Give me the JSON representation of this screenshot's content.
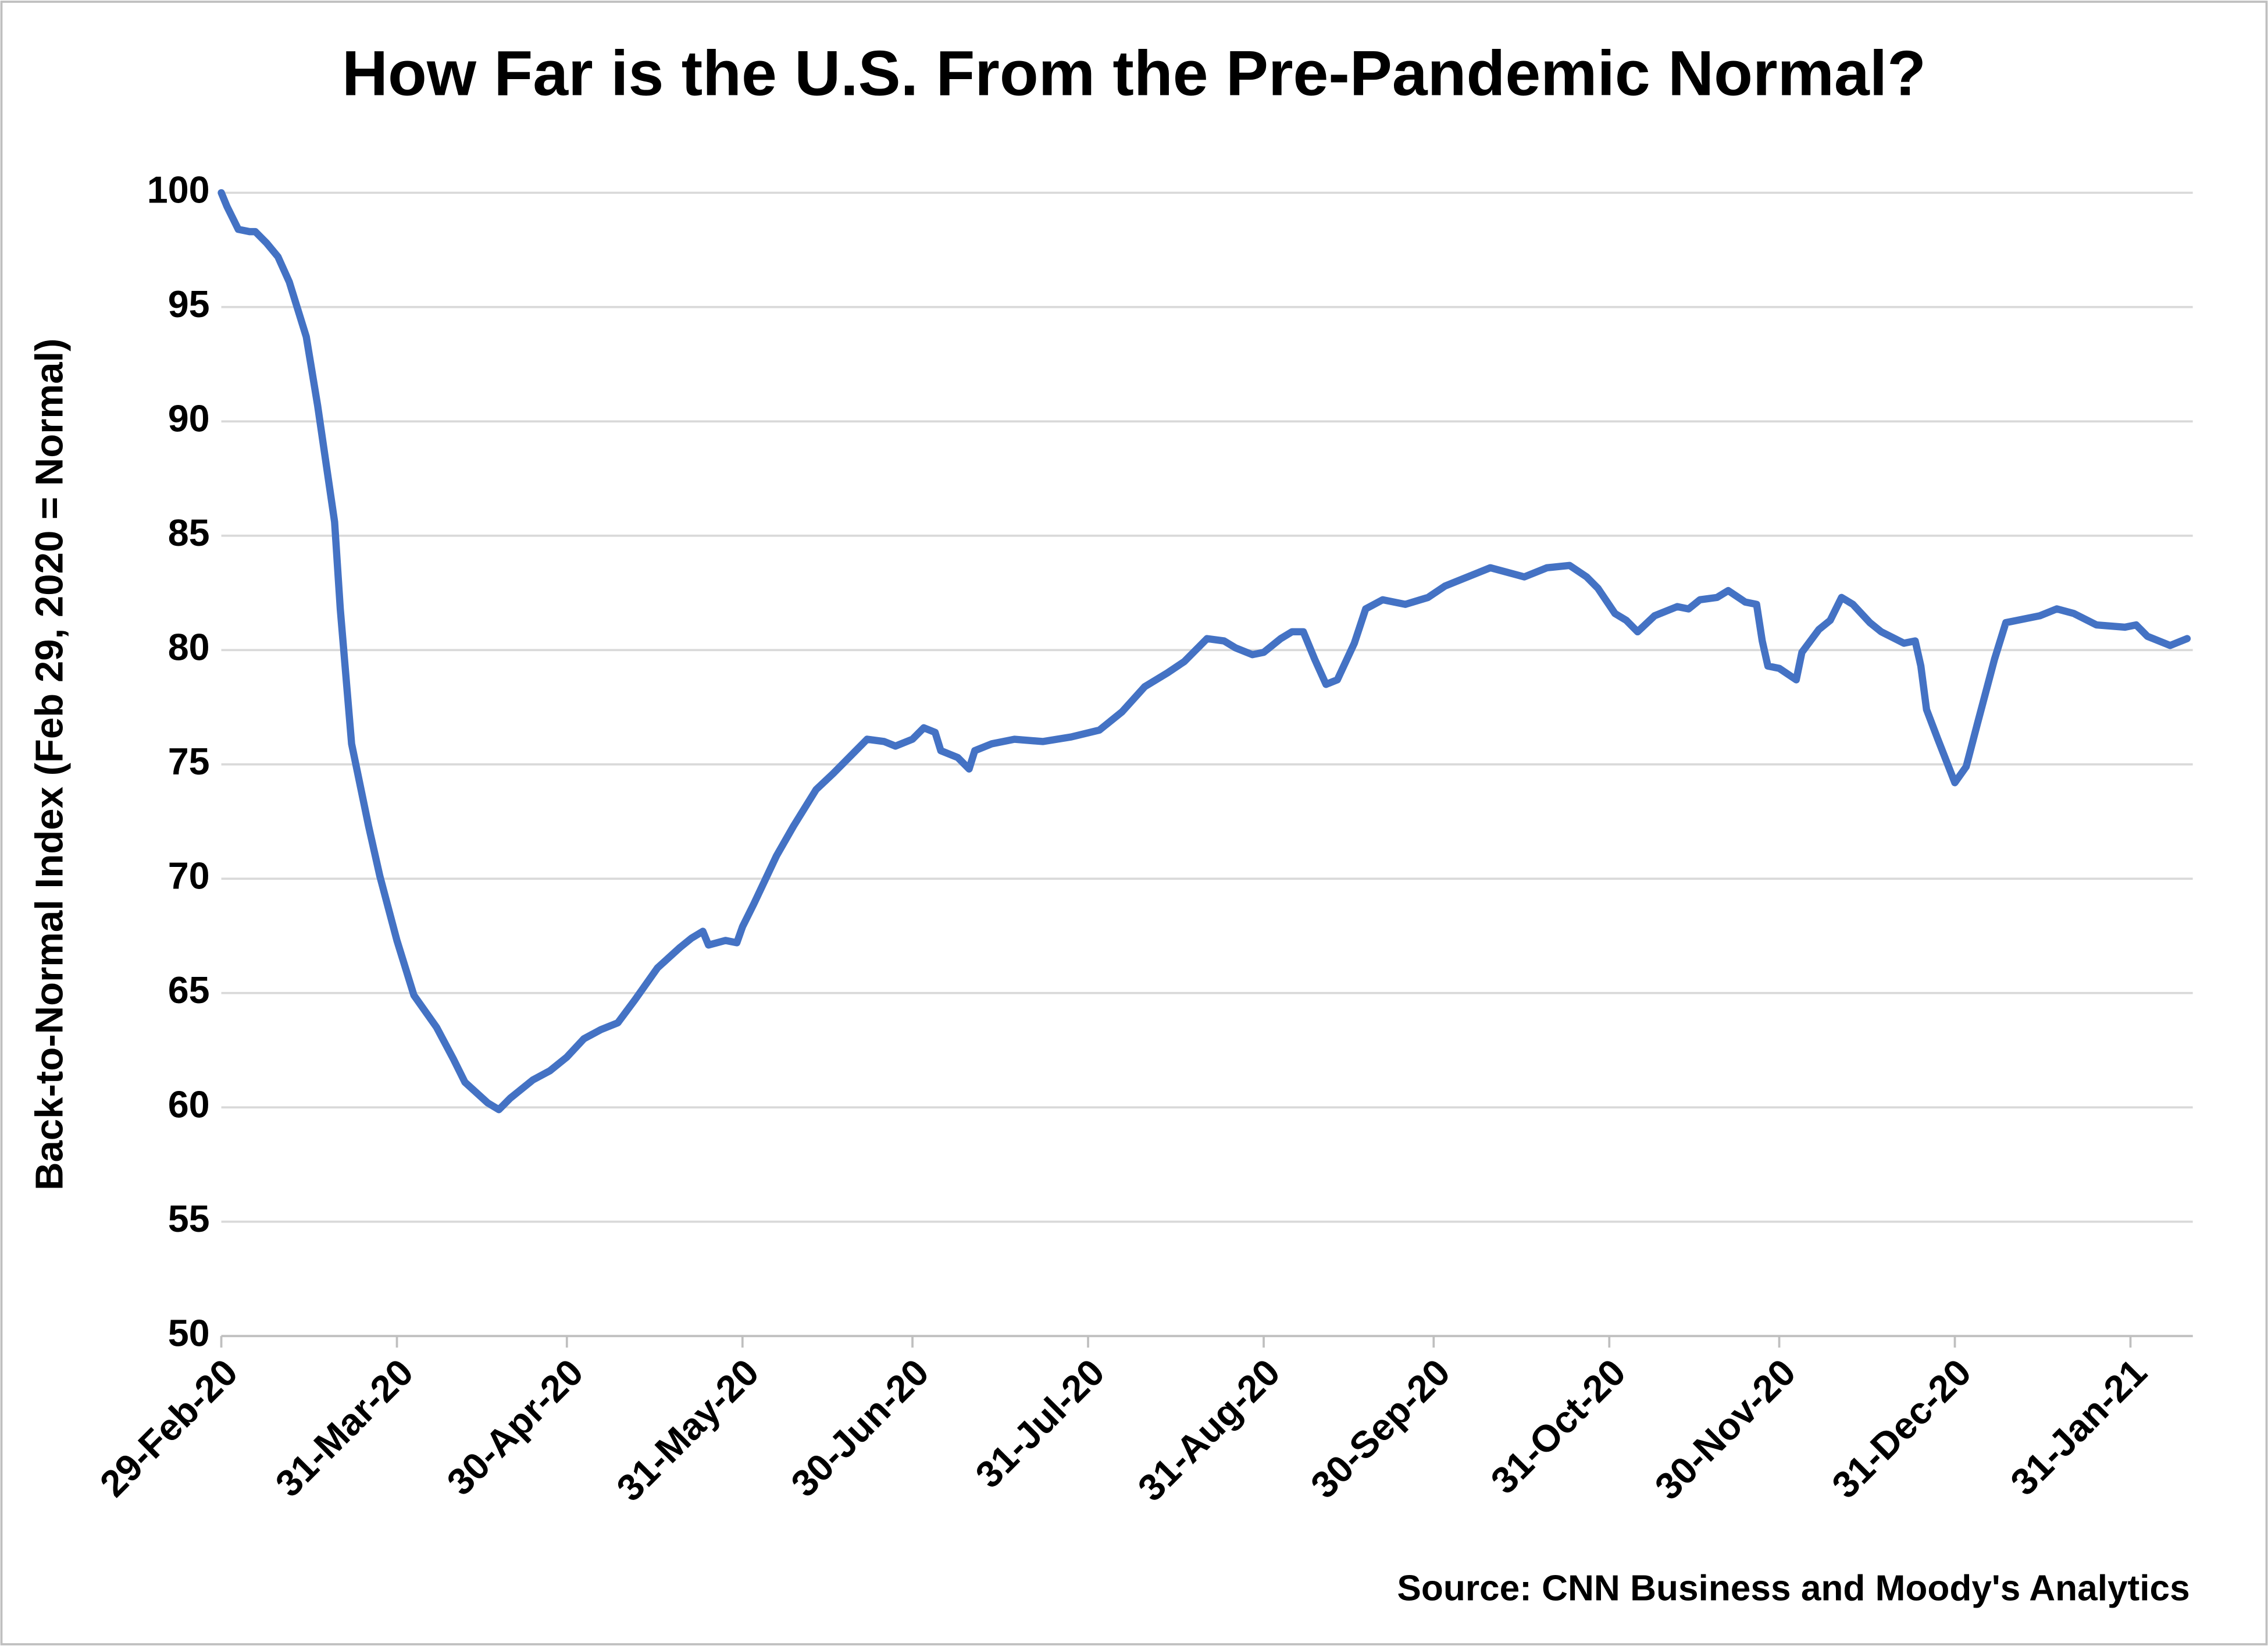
{
  "chart_data": {
    "type": "line",
    "title": "How Far is the U.S. From the Pre-Pandemic Normal?",
    "ylabel": "Back-to-Normal Index (Feb 29, 2020 = Normal)",
    "source": "Source: CNN Business and Moody's Analytics",
    "color": "#4472c4",
    "grid": true,
    "ylim": [
      50,
      100
    ],
    "yticks": [
      50,
      55,
      60,
      65,
      70,
      75,
      80,
      85,
      90,
      95,
      100
    ],
    "xlim": [
      "2020-02-29",
      "2021-02-11"
    ],
    "xticks": [
      {
        "value": "2020-02-29",
        "label": "29-Feb-20"
      },
      {
        "value": "2020-03-31",
        "label": "31-Mar-20"
      },
      {
        "value": "2020-04-30",
        "label": "30-Apr-20"
      },
      {
        "value": "2020-05-31",
        "label": "31-May-20"
      },
      {
        "value": "2020-06-30",
        "label": "30-Jun-20"
      },
      {
        "value": "2020-07-31",
        "label": "31-Jul-20"
      },
      {
        "value": "2020-08-31",
        "label": "31-Aug-20"
      },
      {
        "value": "2020-09-30",
        "label": "30-Sep-20"
      },
      {
        "value": "2020-10-31",
        "label": "31-Oct-20"
      },
      {
        "value": "2020-11-30",
        "label": "30-Nov-20"
      },
      {
        "value": "2020-12-31",
        "label": "31-Dec-20"
      },
      {
        "value": "2021-01-31",
        "label": "31-Jan-21"
      }
    ],
    "x": [
      "2020-02-29",
      "2020-03-01",
      "2020-03-03",
      "2020-03-05",
      "2020-03-06",
      "2020-03-08",
      "2020-03-10",
      "2020-03-12",
      "2020-03-15",
      "2020-03-17",
      "2020-03-20",
      "2020-03-21",
      "2020-03-23",
      "2020-03-26",
      "2020-03-28",
      "2020-03-31",
      "2020-04-03",
      "2020-04-07",
      "2020-04-10",
      "2020-04-12",
      "2020-04-16",
      "2020-04-18",
      "2020-04-20",
      "2020-04-24",
      "2020-04-27",
      "2020-04-30",
      "2020-05-03",
      "2020-05-06",
      "2020-05-09",
      "2020-05-12",
      "2020-05-16",
      "2020-05-20",
      "2020-05-22",
      "2020-05-24",
      "2020-05-25",
      "2020-05-28",
      "2020-05-30",
      "2020-05-31",
      "2020-06-02",
      "2020-06-06",
      "2020-06-09",
      "2020-06-13",
      "2020-06-16",
      "2020-06-20",
      "2020-06-22",
      "2020-06-25",
      "2020-06-27",
      "2020-06-30",
      "2020-07-02",
      "2020-07-04",
      "2020-07-05",
      "2020-07-08",
      "2020-07-10",
      "2020-07-11",
      "2020-07-14",
      "2020-07-18",
      "2020-07-23",
      "2020-07-28",
      "2020-08-02",
      "2020-08-06",
      "2020-08-10",
      "2020-08-14",
      "2020-08-17",
      "2020-08-21",
      "2020-08-24",
      "2020-08-26",
      "2020-08-29",
      "2020-08-31",
      "2020-09-03",
      "2020-09-05",
      "2020-09-07",
      "2020-09-09",
      "2020-09-11",
      "2020-09-13",
      "2020-09-16",
      "2020-09-18",
      "2020-09-21",
      "2020-09-25",
      "2020-09-29",
      "2020-10-02",
      "2020-10-06",
      "2020-10-10",
      "2020-10-13",
      "2020-10-16",
      "2020-10-20",
      "2020-10-24",
      "2020-10-27",
      "2020-10-29",
      "2020-11-01",
      "2020-11-03",
      "2020-11-05",
      "2020-11-08",
      "2020-11-12",
      "2020-11-14",
      "2020-11-16",
      "2020-11-19",
      "2020-11-21",
      "2020-11-24",
      "2020-11-26",
      "2020-11-27",
      "2020-11-28",
      "2020-11-30",
      "2020-12-03",
      "2020-12-04",
      "2020-12-07",
      "2020-12-09",
      "2020-12-11",
      "2020-12-13",
      "2020-12-16",
      "2020-12-18",
      "2020-12-22",
      "2020-12-24",
      "2020-12-25",
      "2020-12-26",
      "2020-12-28",
      "2020-12-31",
      "2021-01-02",
      "2021-01-04",
      "2021-01-07",
      "2021-01-09",
      "2021-01-11",
      "2021-01-15",
      "2021-01-18",
      "2021-01-21",
      "2021-01-25",
      "2021-01-30",
      "2021-02-01",
      "2021-02-03",
      "2021-02-07",
      "2021-02-10"
    ],
    "values": [
      100,
      99.4,
      98.4,
      98.3,
      98.3,
      97.8,
      97.2,
      96.1,
      93.7,
      90.7,
      85.6,
      81.8,
      75.9,
      72.3,
      70.1,
      67.3,
      64.9,
      63.5,
      62.1,
      61.1,
      60.2,
      59.9,
      60.4,
      61.2,
      61.6,
      62.2,
      63.0,
      63.4,
      63.7,
      64.7,
      66.1,
      67.0,
      67.4,
      67.7,
      67.1,
      67.3,
      67.2,
      67.9,
      68.9,
      71.0,
      72.3,
      73.9,
      74.6,
      75.6,
      76.1,
      76.0,
      75.8,
      76.1,
      76.6,
      76.4,
      75.6,
      75.3,
      74.8,
      75.6,
      75.9,
      76.1,
      76.0,
      76.2,
      76.5,
      77.3,
      78.4,
      79.0,
      79.5,
      80.5,
      80.4,
      80.1,
      79.8,
      79.9,
      80.5,
      80.8,
      80.8,
      79.6,
      78.5,
      78.7,
      80.3,
      81.8,
      82.2,
      82.0,
      82.3,
      82.8,
      83.2,
      83.6,
      83.4,
      83.2,
      83.6,
      83.7,
      83.2,
      82.7,
      81.6,
      81.3,
      80.8,
      81.5,
      81.9,
      81.8,
      82.2,
      82.3,
      82.6,
      82.1,
      82.0,
      80.4,
      79.3,
      79.2,
      78.7,
      79.9,
      80.9,
      81.3,
      82.3,
      82.0,
      81.2,
      80.8,
      80.3,
      80.4,
      79.3,
      77.4,
      76.1,
      74.2,
      74.9,
      76.8,
      79.6,
      81.2,
      81.3,
      81.5,
      81.8,
      81.6,
      81.1,
      81.0,
      81.1,
      80.6,
      80.2,
      80.5
    ]
  }
}
